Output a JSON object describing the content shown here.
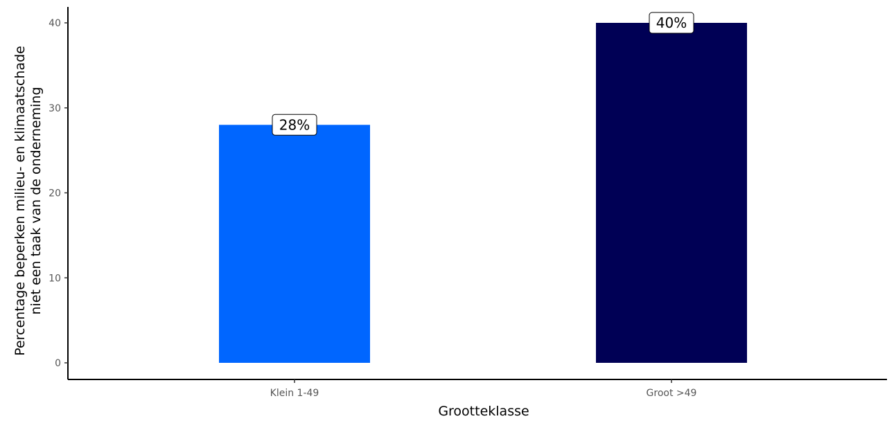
{
  "chart_data": {
    "type": "bar",
    "categories": [
      "Klein 1-49",
      "Groot >49"
    ],
    "values": [
      28,
      40
    ],
    "value_labels": [
      "28%",
      "40%"
    ],
    "colors": [
      "#0066ff",
      "#000055"
    ],
    "xlabel": "Grootteklasse",
    "ylabel_lines": [
      "Percentage beperken milieu- en klimaatschade",
      "niet een taak van de onderneming"
    ],
    "ylim": [
      0,
      42
    ],
    "yticks": [
      0,
      10,
      20,
      30,
      40
    ],
    "ytick_labels": [
      "0",
      "10",
      "20",
      "30",
      "40"
    ],
    "grid": false,
    "legend": "none"
  }
}
